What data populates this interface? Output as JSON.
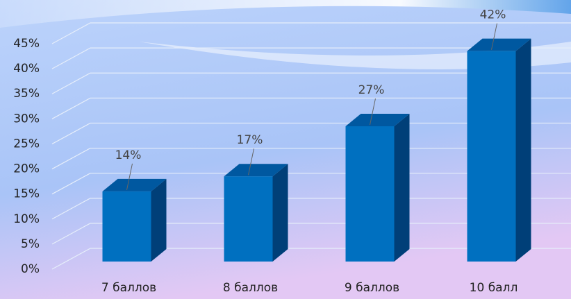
{
  "chart_data": {
    "type": "bar3d",
    "categories": [
      "7 баллов",
      "8 баллов",
      "9 баллов",
      "10 балл"
    ],
    "values": [
      14,
      17,
      27,
      42
    ],
    "value_labels": [
      "14%",
      "17%",
      "27%",
      "42%"
    ],
    "color": "#0070c0",
    "ylim": [
      0,
      45
    ],
    "yticks": [
      {
        "value": 0,
        "label": "0%"
      },
      {
        "value": 5,
        "label": "5%"
      },
      {
        "value": 10,
        "label": "10%"
      },
      {
        "value": 15,
        "label": "15%"
      },
      {
        "value": 20,
        "label": "20%"
      },
      {
        "value": 25,
        "label": "25%"
      },
      {
        "value": 30,
        "label": "30%"
      },
      {
        "value": 35,
        "label": "35%"
      },
      {
        "value": 40,
        "label": "40%"
      },
      {
        "value": 45,
        "label": "45%"
      }
    ],
    "grid": true
  }
}
